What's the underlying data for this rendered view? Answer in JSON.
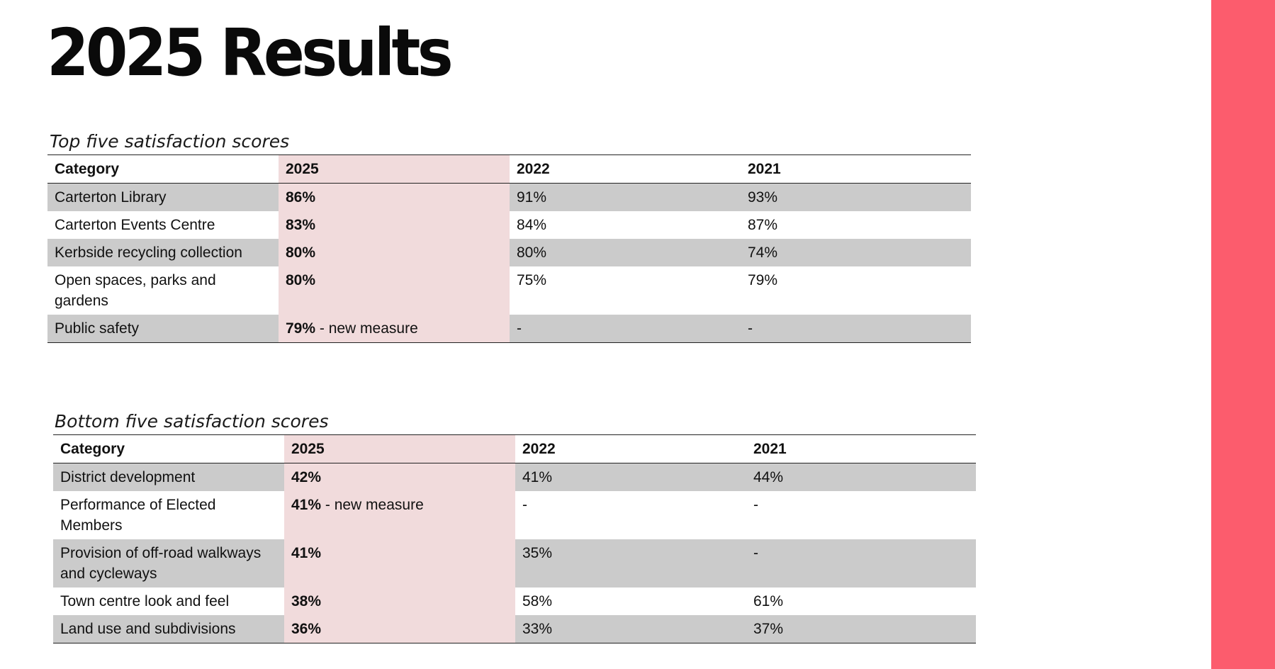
{
  "title": "2025 Results",
  "accent_color": "#fc5c6d",
  "highlight_color": "#f1dbdc",
  "columns": [
    "Category",
    "2025",
    "2022",
    "2021"
  ],
  "top": {
    "caption": "Top five satisfaction scores",
    "rows": [
      {
        "category": "Carterton Library",
        "v2025": "86%",
        "note": "",
        "v2022": "91%",
        "v2021": "93%"
      },
      {
        "category": "Carterton Events Centre",
        "v2025": "83%",
        "note": "",
        "v2022": "84%",
        "v2021": "87%"
      },
      {
        "category": "Kerbside recycling collection",
        "v2025": "80%",
        "note": "",
        "v2022": "80%",
        "v2021": "74%"
      },
      {
        "category": "Open spaces, parks and gardens",
        "v2025": "80%",
        "note": "",
        "v2022": "75%",
        "v2021": "79%"
      },
      {
        "category": "Public safety",
        "v2025": "79%",
        "note": " - new measure",
        "v2022": "-",
        "v2021": "-"
      }
    ]
  },
  "bottom": {
    "caption": "Bottom five satisfaction scores",
    "rows": [
      {
        "category": "District development",
        "v2025": "42%",
        "note": "",
        "v2022": "41%",
        "v2021": "44%"
      },
      {
        "category": "Performance of Elected Members",
        "v2025": "41%",
        "note": " - new measure",
        "v2022": "-",
        "v2021": "-"
      },
      {
        "category": "Provision of off-road walkways and cycleways",
        "v2025": "41%",
        "note": "",
        "v2022": "35%",
        "v2021": "-"
      },
      {
        "category": "Town centre look and feel",
        "v2025": "38%",
        "note": "",
        "v2022": "58%",
        "v2021": "61%"
      },
      {
        "category": "Land use and subdivisions",
        "v2025": "36%",
        "note": "",
        "v2022": "33%",
        "v2021": "37%"
      }
    ]
  }
}
